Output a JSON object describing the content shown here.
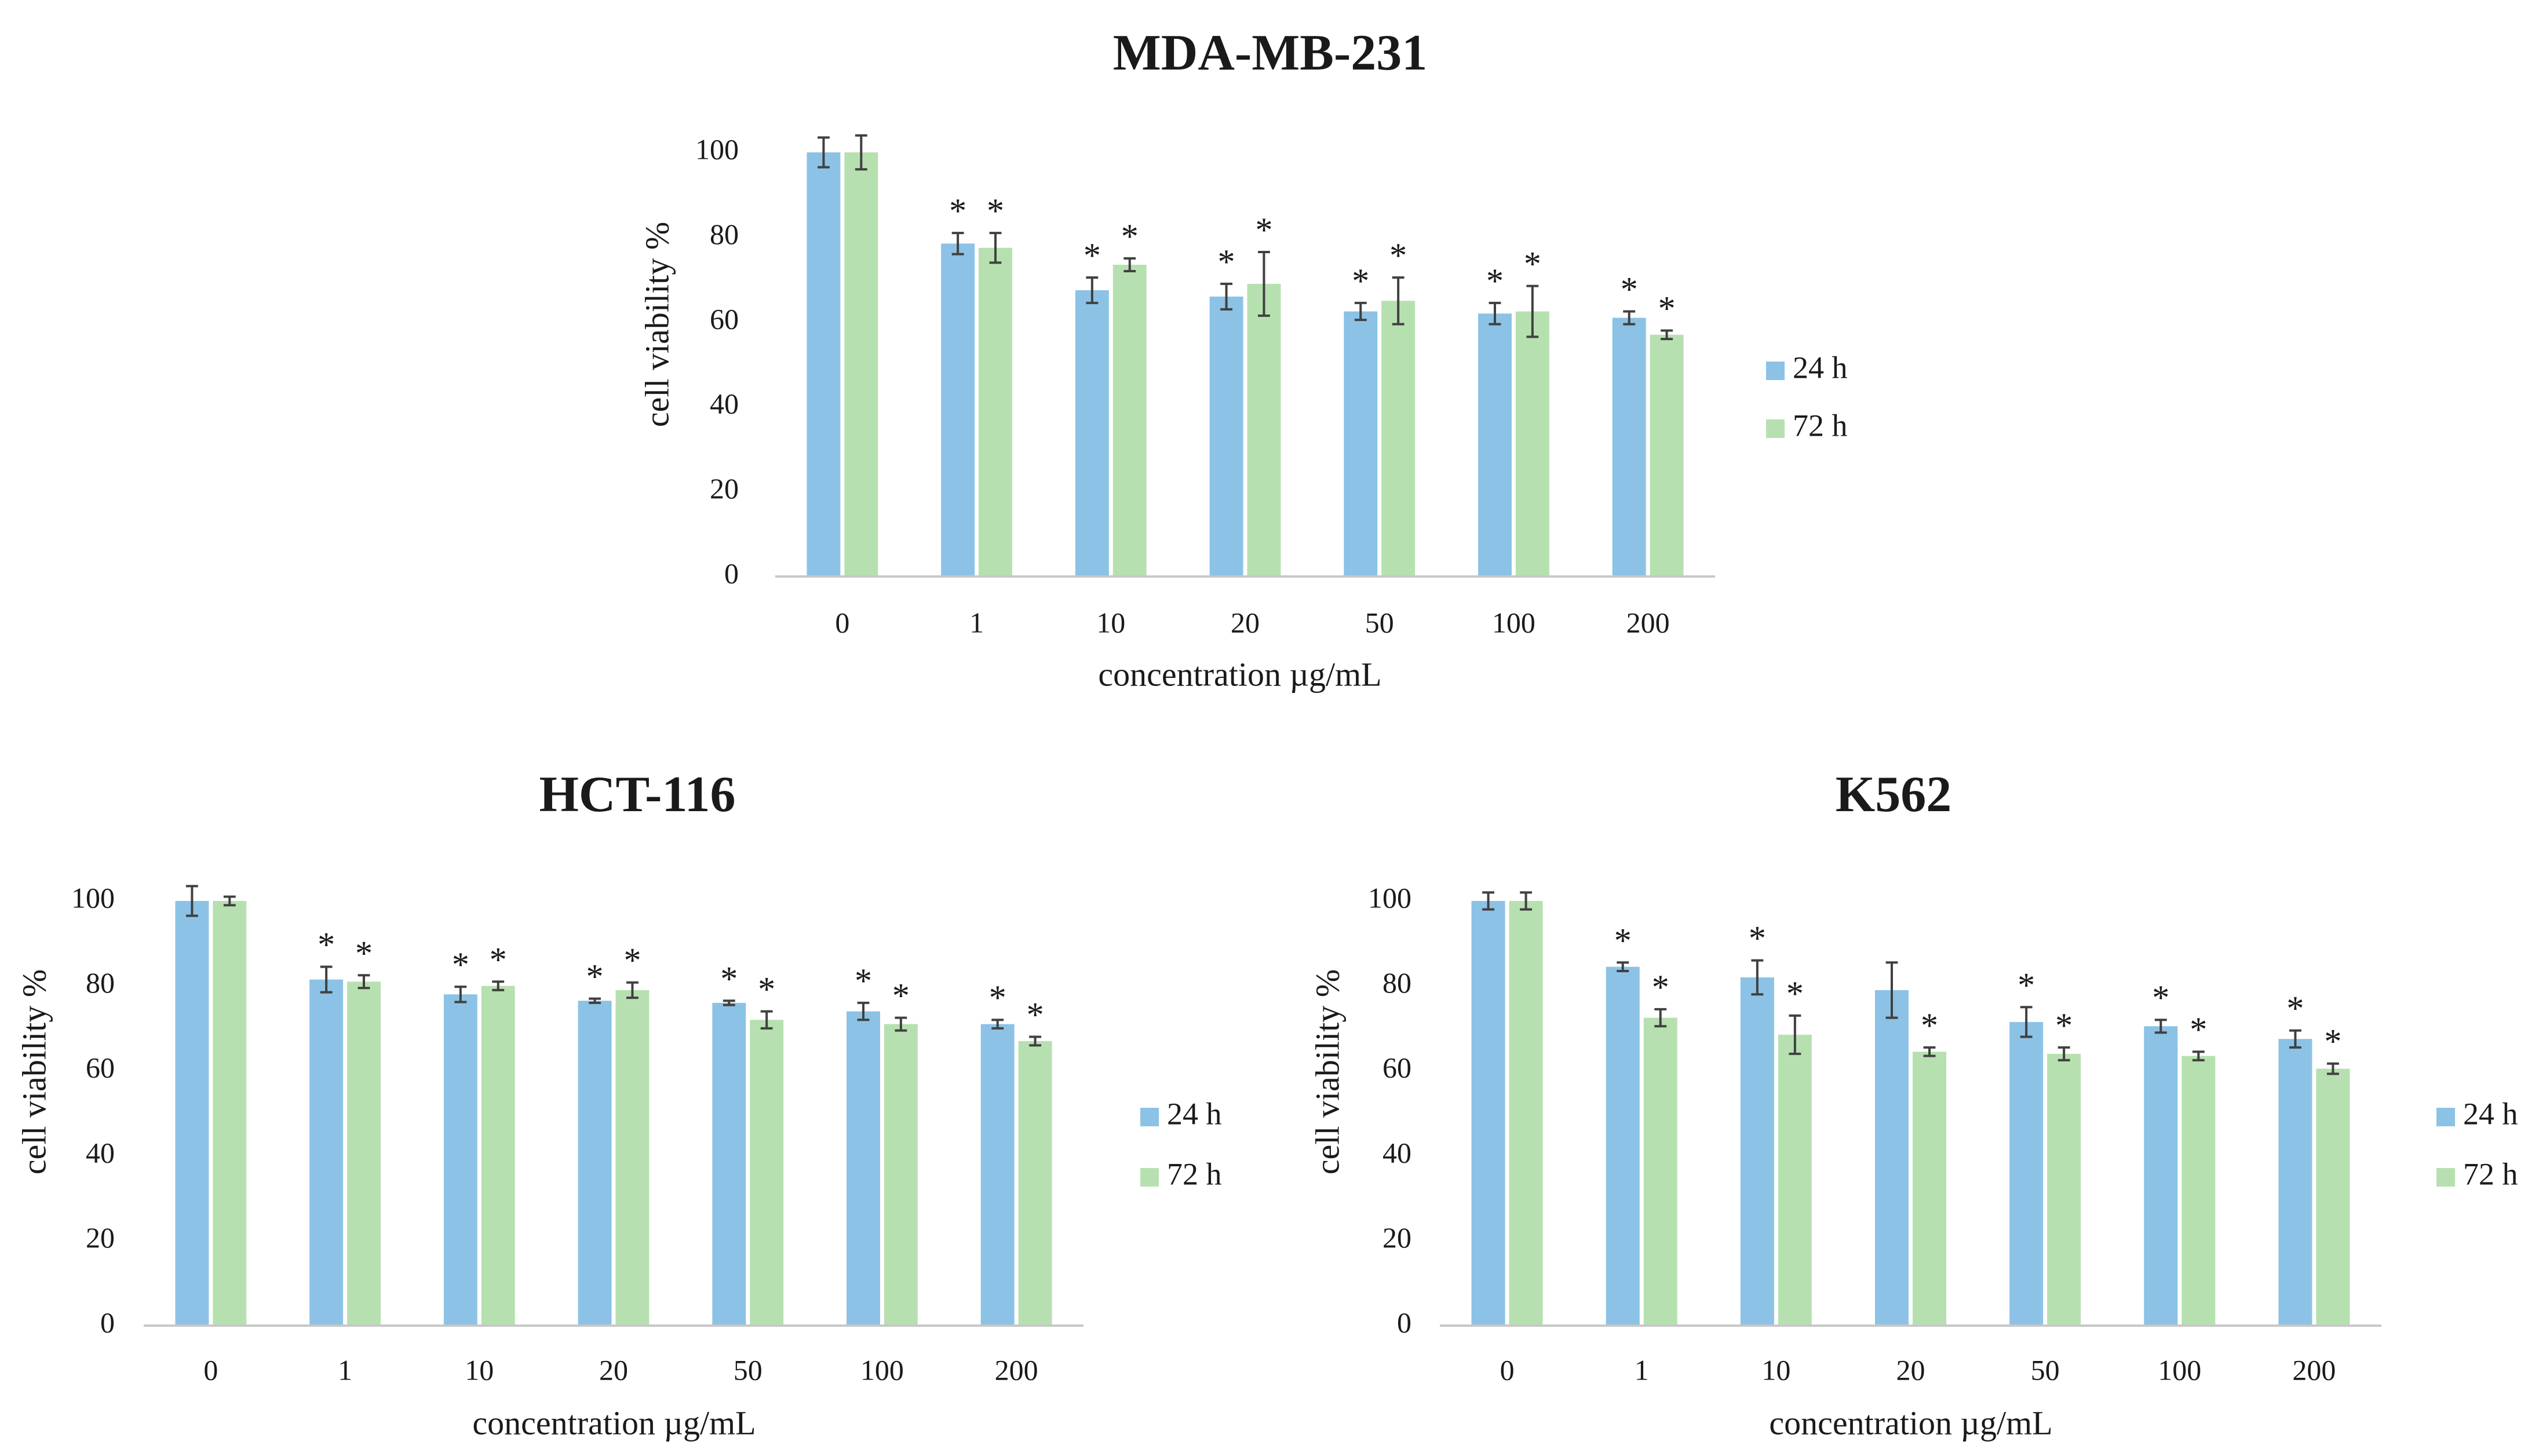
{
  "colors": {
    "series_24h": "#8cc2e6",
    "series_72h": "#b7e0b0",
    "axis": "#c8c8c8",
    "error_bar": "#404040",
    "text": "#1a1a1a"
  },
  "chart_data": [
    {
      "type": "bar",
      "title": "MDA-MB-231",
      "xlabel": "concentration µg/mL",
      "ylabel": "cell viability %",
      "ylim": [
        0,
        100
      ],
      "yticks": [
        "0",
        "20",
        "40",
        "60",
        "80",
        "100"
      ],
      "categories": [
        "0",
        "1",
        "10",
        "20",
        "50",
        "100",
        "200"
      ],
      "grid": false,
      "legend_position": "right",
      "series": [
        {
          "name": "24 h",
          "values": [
            100,
            78.5,
            67.5,
            66,
            62.5,
            62,
            61
          ],
          "errors": [
            3.5,
            2.5,
            3,
            3,
            2,
            2.5,
            1.5
          ],
          "significant": [
            false,
            true,
            true,
            true,
            true,
            true,
            true
          ]
        },
        {
          "name": "72 h",
          "values": [
            100,
            77.5,
            73.5,
            69,
            65,
            62.5,
            57
          ],
          "errors": [
            4,
            3.5,
            1.5,
            7.5,
            5.5,
            6,
            1
          ],
          "significant": [
            false,
            true,
            true,
            true,
            true,
            true,
            true
          ]
        }
      ],
      "significance_marker": "*"
    },
    {
      "type": "bar",
      "title": "HCT-116",
      "xlabel": "concentration µg/mL",
      "ylabel": "cell viability %",
      "ylim": [
        0,
        100
      ],
      "yticks": [
        "0",
        "20",
        "40",
        "60",
        "80",
        "100"
      ],
      "categories": [
        "0",
        "1",
        "10",
        "20",
        "50",
        "100",
        "200"
      ],
      "grid": false,
      "legend_position": "right",
      "series": [
        {
          "name": "24 h",
          "values": [
            100,
            81.5,
            78,
            76.5,
            76,
            74,
            71
          ],
          "errors": [
            3.5,
            3,
            1.8,
            0.5,
            0.5,
            2,
            1
          ],
          "significant": [
            false,
            true,
            true,
            true,
            true,
            true,
            true
          ]
        },
        {
          "name": "72 h",
          "values": [
            100,
            81,
            80,
            79,
            72,
            71,
            67
          ],
          "errors": [
            1,
            1.5,
            1,
            1.8,
            2,
            1.5,
            1
          ],
          "significant": [
            false,
            true,
            true,
            true,
            true,
            true,
            true
          ]
        }
      ],
      "significance_marker": "*"
    },
    {
      "type": "bar",
      "title": "K562",
      "xlabel": "concentration µg/mL",
      "ylabel": "cell viability %",
      "ylim": [
        0,
        100
      ],
      "yticks": [
        "0",
        "20",
        "40",
        "60",
        "80",
        "100"
      ],
      "categories": [
        "0",
        "1",
        "10",
        "20",
        "50",
        "100",
        "200"
      ],
      "grid": false,
      "legend_position": "right",
      "series": [
        {
          "name": "24 h",
          "values": [
            100,
            84.5,
            82,
            79,
            71.5,
            70.5,
            67.5
          ],
          "errors": [
            2,
            1,
            4,
            6.5,
            3.5,
            1.5,
            2
          ],
          "significant": [
            false,
            true,
            true,
            false,
            true,
            true,
            true
          ]
        },
        {
          "name": "72 h",
          "values": [
            100,
            72.5,
            68.5,
            64.5,
            64,
            63.5,
            60.5
          ],
          "errors": [
            2,
            2,
            4.5,
            1,
            1.5,
            1,
            1.2
          ],
          "significant": [
            false,
            true,
            true,
            true,
            true,
            true,
            true
          ]
        }
      ],
      "significance_marker": "*"
    }
  ]
}
